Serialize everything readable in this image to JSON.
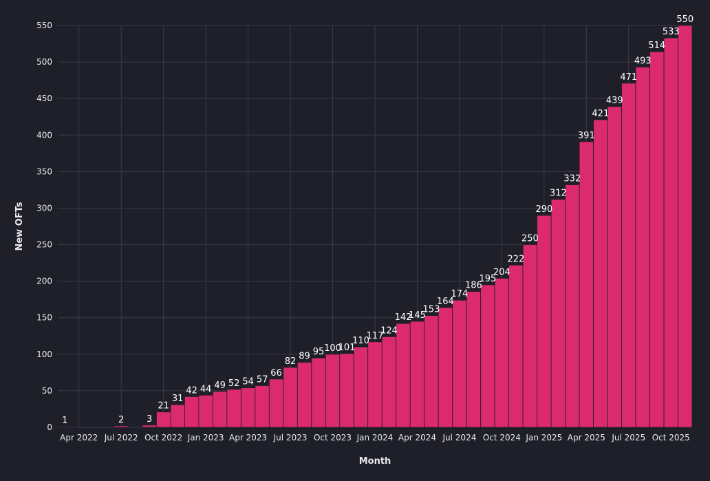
{
  "chart_data": {
    "type": "bar",
    "xlabel": "Month",
    "ylabel": "New OFTs",
    "ylim": [
      0,
      550
    ],
    "y_ticks": [
      0,
      50,
      100,
      150,
      200,
      250,
      300,
      350,
      400,
      450,
      500,
      550
    ],
    "grid": true,
    "colors": {
      "background": "#1f1f2a",
      "bar": "#db2a6e",
      "grid": "#3a3b4a",
      "text": "#e8e8ee"
    },
    "categories": [
      "Mar 2022",
      "Apr 2022",
      "May 2022",
      "Jun 2022",
      "Jul 2022",
      "Aug 2022",
      "Sep 2022",
      "Oct 2022",
      "Nov 2022",
      "Dec 2022",
      "Jan 2023",
      "Feb 2023",
      "Mar 2023",
      "Apr 2023",
      "May 2023",
      "Jun 2023",
      "Jul 2023",
      "Aug 2023",
      "Sep 2023",
      "Oct 2023",
      "Nov 2023",
      "Dec 2023",
      "Jan 2024",
      "Feb 2024",
      "Mar 2024",
      "Apr 2024",
      "May 2024",
      "Jun 2024",
      "Jul 2024",
      "Aug 2024",
      "Sep 2024",
      "Oct 2024",
      "Nov 2024",
      "Dec 2024",
      "Jan 2025",
      "Feb 2025",
      "Mar 2025",
      "Apr 2025",
      "May 2025",
      "Jun 2025",
      "Jul 2025",
      "Aug 2025",
      "Sep 2025",
      "Oct 2025",
      "Nov 2025"
    ],
    "values": [
      1,
      null,
      null,
      null,
      2,
      null,
      3,
      21,
      31,
      42,
      44,
      49,
      52,
      54,
      57,
      66,
      82,
      89,
      95,
      100,
      101,
      110,
      117,
      124,
      142,
      145,
      153,
      164,
      174,
      186,
      195,
      204,
      222,
      250,
      290,
      312,
      332,
      391,
      421,
      439,
      471,
      493,
      514,
      533,
      550
    ],
    "x_tick_labels": [
      "Apr 2022",
      "Jul 2022",
      "Oct 2022",
      "Jan 2023",
      "Apr 2023",
      "Jul 2023",
      "Oct 2023",
      "Jan 2024",
      "Apr 2024",
      "Jul 2024",
      "Oct 2024",
      "Jan 2025",
      "Apr 2025",
      "Jul 2025",
      "Oct 2025"
    ]
  }
}
